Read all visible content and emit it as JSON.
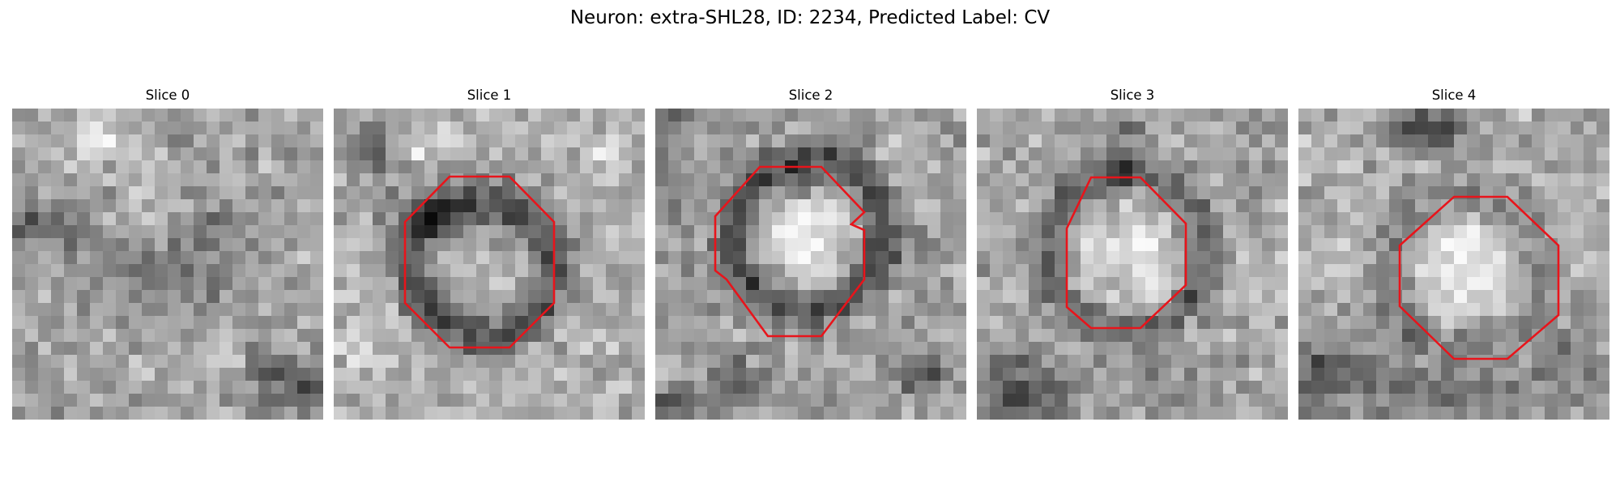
{
  "title": "Neuron: extra-SHL28, ID: 2234, Predicted Label: CV",
  "outline_color": "#e8141b",
  "colormap": "grayscale",
  "slices": [
    {
      "label": "Slice 0",
      "has_outline": false
    },
    {
      "label": "Slice 1",
      "has_outline": true
    },
    {
      "label": "Slice 2",
      "has_outline": true
    },
    {
      "label": "Slice 3",
      "has_outline": true
    },
    {
      "label": "Slice 4",
      "has_outline": true
    }
  ]
}
